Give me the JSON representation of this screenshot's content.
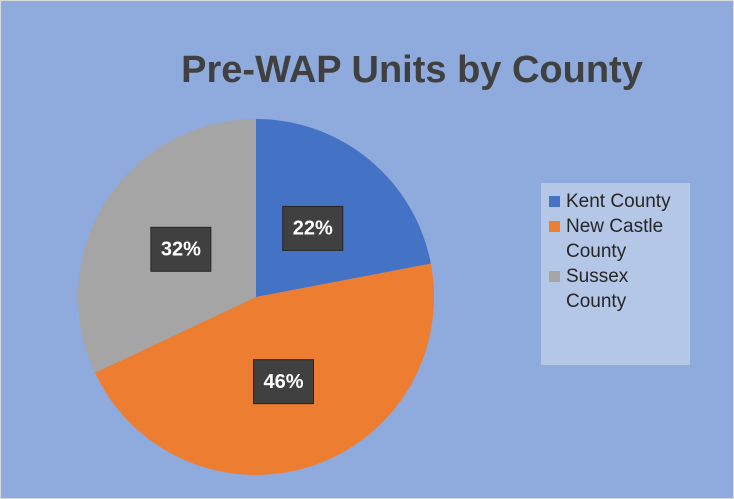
{
  "chart_data": {
    "type": "pie",
    "title": "Pre-WAP Units by County",
    "categories": [
      "Kent County",
      "New Castle County",
      "Sussex County"
    ],
    "values": [
      22,
      46,
      32
    ],
    "value_labels": [
      "22%",
      "46%",
      "32%"
    ],
    "colors": [
      "#4472c4",
      "#ed7d31",
      "#a5a5a5"
    ],
    "legend": "right"
  }
}
